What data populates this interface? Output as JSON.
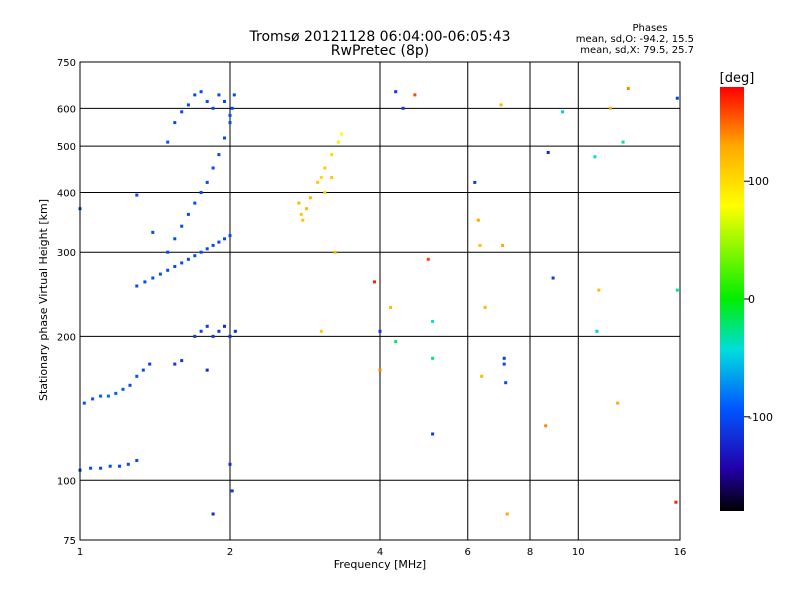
{
  "chart_data": {
    "type": "scatter",
    "title": "Tromsø 20121128 06:04:00-06:05:43",
    "subtitle": "RwPretec (8p)",
    "xlabel": "Frequency [MHz]",
    "ylabel": "Stationary phase Virtual Height [km]",
    "x_scale": "log",
    "y_scale": "log",
    "xlim": [
      1,
      16
    ],
    "ylim": [
      75,
      750
    ],
    "x_ticks": [
      1,
      2,
      4,
      6,
      8,
      10,
      16
    ],
    "y_ticks": [
      75,
      100,
      200,
      300,
      400,
      500,
      600,
      750
    ],
    "phase_stats": {
      "heading": "Phases",
      "line1": "mean, sd,O: -94.2, 15.5",
      "line2": "mean, sd,X:  79.5, 25.7"
    },
    "colorbar": {
      "label": "[deg]",
      "range": [
        -180,
        180
      ],
      "ticks": [
        100,
        0,
        -100
      ],
      "colors": [
        "#ff0000",
        "#ffaa00",
        "#ffff00",
        "#00ee00",
        "#00dddd",
        "#0055ff",
        "#2200aa",
        "#000000"
      ]
    },
    "series": [
      {
        "points_x_y_phase": [
          [
            1.0,
            105,
            -100
          ],
          [
            1.05,
            106,
            -100
          ],
          [
            1.1,
            106,
            -100
          ],
          [
            1.15,
            107,
            -100
          ],
          [
            1.2,
            107,
            -100
          ],
          [
            1.25,
            108,
            -100
          ],
          [
            1.3,
            110,
            -100
          ],
          [
            1.02,
            145,
            -95
          ],
          [
            1.06,
            148,
            -95
          ],
          [
            1.1,
            150,
            -90
          ],
          [
            1.14,
            150,
            -85
          ],
          [
            1.18,
            152,
            -90
          ],
          [
            1.22,
            155,
            -95
          ],
          [
            1.26,
            158,
            -100
          ],
          [
            1.3,
            165,
            -95
          ],
          [
            1.34,
            170,
            -100
          ],
          [
            1.38,
            175,
            -110
          ],
          [
            1.3,
            255,
            -100
          ],
          [
            1.35,
            260,
            -100
          ],
          [
            1.4,
            265,
            -100
          ],
          [
            1.45,
            270,
            -95
          ],
          [
            1.5,
            275,
            -100
          ],
          [
            1.55,
            280,
            -100
          ],
          [
            1.6,
            285,
            -100
          ],
          [
            1.65,
            290,
            -100
          ],
          [
            1.7,
            295,
            -100
          ],
          [
            1.75,
            300,
            -100
          ],
          [
            1.8,
            305,
            -100
          ],
          [
            1.85,
            310,
            -100
          ],
          [
            1.9,
            315,
            -100
          ],
          [
            1.95,
            320,
            -100
          ],
          [
            2.0,
            325,
            -100
          ],
          [
            1.5,
            300,
            -100
          ],
          [
            1.55,
            320,
            -100
          ],
          [
            1.6,
            340,
            -100
          ],
          [
            1.65,
            360,
            -100
          ],
          [
            1.7,
            380,
            -100
          ],
          [
            1.75,
            400,
            -100
          ],
          [
            1.8,
            420,
            -100
          ],
          [
            1.85,
            450,
            -100
          ],
          [
            1.9,
            480,
            -100
          ],
          [
            1.95,
            520,
            -100
          ],
          [
            2.0,
            560,
            -100
          ],
          [
            2.02,
            600,
            -100
          ],
          [
            2.04,
            640,
            -100
          ],
          [
            1.5,
            510,
            -95
          ],
          [
            1.55,
            560,
            -100
          ],
          [
            1.6,
            590,
            -100
          ],
          [
            1.65,
            610,
            -100
          ],
          [
            1.7,
            640,
            -100
          ],
          [
            1.75,
            650,
            -100
          ],
          [
            1.8,
            620,
            -100
          ],
          [
            1.85,
            600,
            -100
          ],
          [
            1.9,
            640,
            -100
          ],
          [
            1.95,
            620,
            -100
          ],
          [
            2.0,
            580,
            -100
          ],
          [
            1.55,
            175,
            -110
          ],
          [
            1.6,
            178,
            -110
          ],
          [
            1.7,
            200,
            -110
          ],
          [
            1.75,
            205,
            -110
          ],
          [
            1.8,
            210,
            -110
          ],
          [
            1.85,
            200,
            -110
          ],
          [
            1.9,
            205,
            -110
          ],
          [
            1.95,
            210,
            -120
          ],
          [
            2.0,
            200,
            -120
          ],
          [
            2.05,
            205,
            -120
          ],
          [
            1.8,
            170,
            -120
          ],
          [
            2.0,
            108,
            -120
          ],
          [
            2.02,
            95,
            -110
          ],
          [
            1.85,
            85,
            -120
          ],
          [
            1.3,
            395,
            -100
          ],
          [
            1.0,
            370,
            -100
          ],
          [
            1.4,
            330,
            -100
          ],
          [
            2.75,
            380,
            120
          ],
          [
            2.78,
            360,
            110
          ],
          [
            2.8,
            350,
            115
          ],
          [
            2.85,
            370,
            120
          ],
          [
            2.9,
            390,
            120
          ],
          [
            3.0,
            420,
            110
          ],
          [
            3.05,
            430,
            100
          ],
          [
            3.1,
            450,
            110
          ],
          [
            3.2,
            480,
            100
          ],
          [
            3.3,
            510,
            90
          ],
          [
            3.35,
            530,
            80
          ],
          [
            3.1,
            400,
            100
          ],
          [
            3.2,
            430,
            110
          ],
          [
            3.25,
            300,
            120
          ],
          [
            3.05,
            205,
            110
          ],
          [
            3.9,
            260,
            170
          ],
          [
            4.3,
            650,
            -110
          ],
          [
            4.45,
            600,
            -110
          ],
          [
            4.7,
            640,
            160
          ],
          [
            4.0,
            205,
            -110
          ],
          [
            4.3,
            195,
            -20
          ],
          [
            4.2,
            230,
            120
          ],
          [
            5.0,
            290,
            160
          ],
          [
            5.1,
            215,
            -40
          ],
          [
            5.1,
            180,
            -20
          ],
          [
            5.1,
            125,
            -110
          ],
          [
            4.0,
            170,
            140
          ],
          [
            6.2,
            420,
            -110
          ],
          [
            6.3,
            350,
            130
          ],
          [
            6.35,
            310,
            120
          ],
          [
            6.4,
            165,
            120
          ],
          [
            6.5,
            230,
            120
          ],
          [
            7.0,
            610,
            120
          ],
          [
            7.05,
            310,
            130
          ],
          [
            7.1,
            180,
            -110
          ],
          [
            7.1,
            175,
            -100
          ],
          [
            7.15,
            160,
            -100
          ],
          [
            7.2,
            85,
            130
          ],
          [
            8.7,
            485,
            -120
          ],
          [
            8.9,
            265,
            -110
          ],
          [
            9.3,
            590,
            -50
          ],
          [
            8.6,
            130,
            140
          ],
          [
            10.8,
            475,
            -40
          ],
          [
            10.9,
            205,
            -50
          ],
          [
            11.0,
            250,
            120
          ],
          [
            11.6,
            600,
            130
          ],
          [
            12.0,
            145,
            130
          ],
          [
            12.3,
            510,
            -30
          ],
          [
            12.6,
            660,
            140
          ],
          [
            15.7,
            90,
            170
          ],
          [
            15.8,
            250,
            -30
          ],
          [
            15.8,
            630,
            -110
          ]
        ]
      }
    ]
  }
}
